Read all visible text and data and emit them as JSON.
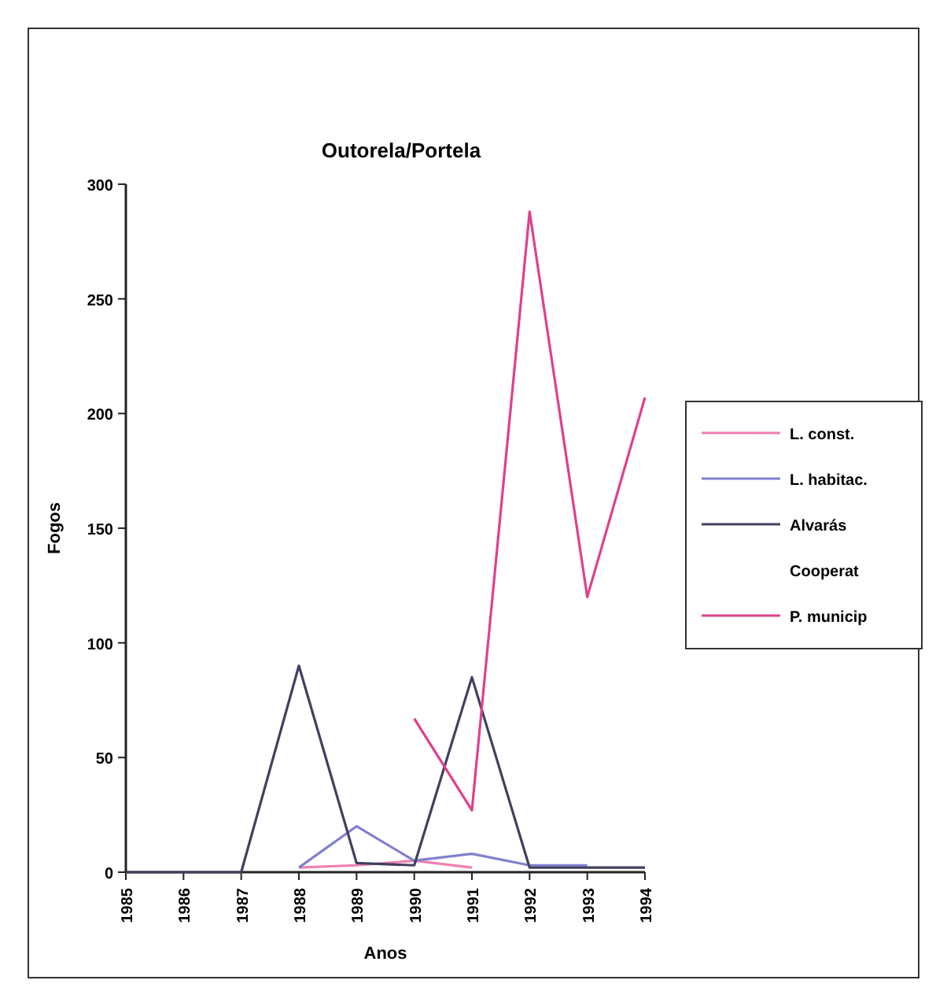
{
  "chart_data": {
    "type": "line",
    "title": "Outorela/Portela",
    "xlabel": "Anos",
    "ylabel": "Fogos",
    "x": [
      1985,
      1986,
      1987,
      1988,
      1989,
      1990,
      1991,
      1992,
      1993,
      1994
    ],
    "xlim": [
      1985,
      1994
    ],
    "xticks": [
      1985,
      1986,
      1987,
      1988,
      1989,
      1990,
      1991,
      1992,
      1993,
      1994
    ],
    "ylim": [
      0,
      300
    ],
    "yticks": [
      0,
      50,
      100,
      150,
      200,
      250,
      300
    ],
    "legend": "right",
    "grid": false,
    "marker": "none",
    "line_style": "solid",
    "series": [
      {
        "name": "L. const.",
        "color": "#f080b0",
        "values": [
          null,
          null,
          null,
          2,
          3,
          5,
          2,
          null,
          null,
          null
        ]
      },
      {
        "name": "L. habitac.",
        "color": "#8080d0",
        "values": [
          null,
          null,
          null,
          2,
          20,
          5,
          8,
          3,
          3,
          null
        ]
      },
      {
        "name": "Alvarás",
        "color": "#404060",
        "values": [
          0,
          0,
          0,
          90,
          4,
          3,
          85,
          2,
          2,
          2
        ]
      },
      {
        "name": "Cooperat",
        "values": [
          null,
          null,
          null,
          null,
          null,
          null,
          null,
          null,
          null,
          null
        ]
      },
      {
        "name": "P. municip",
        "color": "#e0408a",
        "values": [
          null,
          null,
          null,
          null,
          null,
          67,
          27,
          288,
          120,
          207
        ]
      }
    ]
  }
}
